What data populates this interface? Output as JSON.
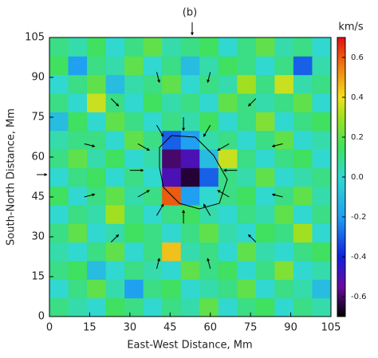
{
  "chart_data": {
    "type": "heatmap",
    "title": "(b)",
    "x_label": "East-West Distance, Mm",
    "y_label": "South-North Distance, Mm",
    "colorbar_label": "km/s",
    "xlim": [
      0,
      105
    ],
    "ylim": [
      0,
      105
    ],
    "xticks": [
      0,
      15,
      30,
      45,
      60,
      75,
      90,
      105
    ],
    "yticks": [
      0,
      15,
      30,
      45,
      60,
      75,
      90,
      105
    ],
    "clim": [
      -0.7,
      0.7
    ],
    "cticks": [
      0.6,
      0.4,
      0.2,
      {
        "value": 0,
        "label": "0.0"
      },
      -0.2,
      -0.4,
      -0.6
    ],
    "colorscale": [
      [
        -0.7,
        "#000000"
      ],
      [
        -0.55,
        "#6a0aa0"
      ],
      [
        -0.4,
        "#1020e0"
      ],
      [
        -0.2,
        "#20a0f0"
      ],
      [
        0,
        "#30d8d0"
      ],
      [
        0.15,
        "#40e060"
      ],
      [
        0.3,
        "#a0e020"
      ],
      [
        0.4,
        "#f0e020"
      ],
      [
        0.55,
        "#f08010"
      ],
      [
        0.7,
        "#e01010"
      ]
    ],
    "z": [
      [
        0.1,
        0.05,
        0.0,
        0.15,
        0.1,
        0.0,
        0.1,
        0.05,
        0.2,
        0.0,
        0.1,
        0.15,
        0.0,
        0.1,
        0.05
      ],
      [
        0.0,
        0.1,
        0.2,
        0.05,
        -0.2,
        0.1,
        0.15,
        0.0,
        0.05,
        0.1,
        0.2,
        0.0,
        0.1,
        0.05,
        -0.1
      ],
      [
        0.1,
        0.15,
        -0.1,
        0.0,
        0.1,
        0.05,
        0.0,
        0.2,
        0.1,
        0.15,
        0.0,
        0.1,
        0.25,
        0.0,
        0.05
      ],
      [
        0.05,
        0.0,
        0.1,
        0.2,
        0.0,
        0.1,
        0.45,
        0.05,
        0.1,
        0.0,
        0.2,
        0.05,
        0.0,
        0.1,
        0.15
      ],
      [
        0.1,
        0.2,
        0.0,
        0.05,
        0.15,
        0.1,
        0.0,
        0.1,
        0.2,
        0.05,
        0.0,
        0.15,
        0.1,
        0.3,
        0.0
      ],
      [
        0.0,
        0.1,
        0.05,
        0.3,
        0.1,
        0.0,
        0.1,
        0.15,
        0.05,
        0.0,
        0.1,
        0.05,
        0.2,
        0.0,
        0.1
      ],
      [
        0.15,
        0.0,
        0.1,
        0.2,
        0.05,
        0.1,
        0.6,
        -0.2,
        0.0,
        0.1,
        0.15,
        0.0,
        0.1,
        0.2,
        0.05
      ],
      [
        0.0,
        0.1,
        0.15,
        0.0,
        0.1,
        0.0,
        -0.5,
        -0.65,
        -0.3,
        0.1,
        0.05,
        0.2,
        0.0,
        0.05,
        0.1
      ],
      [
        0.1,
        0.2,
        0.05,
        0.15,
        0.0,
        0.05,
        -0.6,
        -0.5,
        -0.1,
        0.35,
        0.1,
        0.0,
        0.1,
        0.15,
        0.0
      ],
      [
        0.05,
        0.1,
        0.1,
        0.0,
        0.2,
        0.1,
        -0.3,
        -0.2,
        0.05,
        0.1,
        0.0,
        0.1,
        0.2,
        0.0,
        0.05
      ],
      [
        -0.1,
        0.15,
        0.0,
        0.2,
        0.1,
        0.0,
        0.1,
        0.05,
        0.15,
        0.0,
        0.1,
        0.25,
        0.0,
        0.1,
        0.15
      ],
      [
        0.1,
        0.0,
        0.35,
        0.1,
        0.0,
        0.15,
        0.05,
        0.1,
        0.0,
        0.2,
        0.1,
        0.05,
        0.1,
        0.2,
        0.0
      ],
      [
        0.0,
        0.1,
        0.2,
        -0.1,
        0.05,
        0.1,
        0.2,
        0.0,
        0.1,
        0.05,
        0.3,
        0.1,
        0.35,
        0.05,
        0.1
      ],
      [
        0.15,
        -0.2,
        0.1,
        0.05,
        0.2,
        0.0,
        0.1,
        -0.1,
        0.05,
        0.15,
        0.1,
        0.0,
        0.1,
        -0.3,
        0.05
      ],
      [
        0.1,
        0.05,
        0.15,
        0.0,
        0.1,
        0.2,
        0.05,
        0.1,
        0.15,
        0.0,
        0.1,
        0.2,
        0.05,
        0.1,
        0.0
      ]
    ],
    "arrows": {
      "x": [
        70,
        67,
        60,
        50,
        40,
        33,
        30,
        33,
        40,
        50,
        60,
        67,
        87,
        77,
        60,
        40,
        23,
        13,
        13,
        23,
        40,
        60,
        77,
        87
      ],
      "y": [
        55,
        65,
        72,
        75,
        72,
        65,
        55,
        45,
        38,
        35,
        38,
        45,
        65,
        82,
        92,
        92,
        82,
        65,
        45,
        28,
        18,
        18,
        28,
        45
      ],
      "u": [
        -5,
        -4.3,
        -2.5,
        0,
        2.5,
        4.3,
        5,
        4.3,
        2.5,
        0,
        -2.5,
        -4.3,
        -3.9,
        -2.8,
        -1,
        1,
        2.8,
        3.9,
        3.9,
        2.8,
        1,
        -1,
        -2.8,
        -3.9
      ],
      "v": [
        0,
        -2.5,
        -4.3,
        -5,
        -4.3,
        -2.5,
        0,
        2.5,
        4.3,
        5,
        4.3,
        2.5,
        -1,
        -2.8,
        -3.9,
        -3.9,
        -2.8,
        -1,
        1,
        2.8,
        3.9,
        3.9,
        2.8,
        1
      ]
    }
  }
}
